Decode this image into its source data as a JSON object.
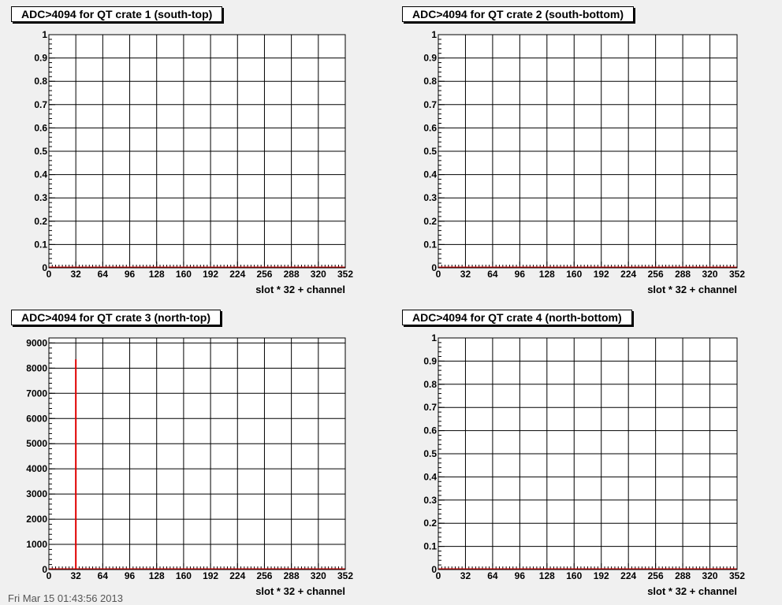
{
  "chart_data": [
    {
      "type": "bar",
      "title": "ADC>4094 for QT crate 1 (south-top)",
      "xlabel": "slot * 32 + channel",
      "ylabel": "",
      "xlim": [
        0,
        352
      ],
      "ylim": [
        0,
        1
      ],
      "xticks": [
        "0",
        "32",
        "64",
        "96",
        "128",
        "160",
        "192",
        "224",
        "256",
        "288",
        "320",
        "352"
      ],
      "yticks": [
        "0",
        "0.1",
        "0.2",
        "0.3",
        "0.4",
        "0.5",
        "0.6",
        "0.7",
        "0.8",
        "0.9",
        "1"
      ],
      "grid": true,
      "bars": []
    },
    {
      "type": "bar",
      "title": "ADC>4094 for QT crate 2 (south-bottom)",
      "xlabel": "slot * 32 + channel",
      "ylabel": "",
      "xlim": [
        0,
        352
      ],
      "ylim": [
        0,
        1
      ],
      "xticks": [
        "0",
        "32",
        "64",
        "96",
        "128",
        "160",
        "192",
        "224",
        "256",
        "288",
        "320",
        "352"
      ],
      "yticks": [
        "0",
        "0.1",
        "0.2",
        "0.3",
        "0.4",
        "0.5",
        "0.6",
        "0.7",
        "0.8",
        "0.9",
        "1"
      ],
      "grid": true,
      "bars": []
    },
    {
      "type": "bar",
      "title": "ADC>4094 for QT crate 3 (north-top)",
      "xlabel": "slot * 32 + channel",
      "ylabel": "",
      "xlim": [
        0,
        352
      ],
      "ylim": [
        0,
        9200
      ],
      "xticks": [
        "0",
        "32",
        "64",
        "96",
        "128",
        "160",
        "192",
        "224",
        "256",
        "288",
        "320",
        "352"
      ],
      "yticks": [
        "0",
        "1000",
        "2000",
        "3000",
        "4000",
        "5000",
        "6000",
        "7000",
        "8000",
        "9000"
      ],
      "grid": true,
      "bars": [
        {
          "x": 32,
          "value": 8350
        }
      ]
    },
    {
      "type": "bar",
      "title": "ADC>4094 for QT crate 4 (north-bottom)",
      "xlabel": "slot * 32 + channel",
      "ylabel": "",
      "xlim": [
        0,
        352
      ],
      "ylim": [
        0,
        1
      ],
      "xticks": [
        "0",
        "32",
        "64",
        "96",
        "128",
        "160",
        "192",
        "224",
        "256",
        "288",
        "320",
        "352"
      ],
      "yticks": [
        "0",
        "0.1",
        "0.2",
        "0.3",
        "0.4",
        "0.5",
        "0.6",
        "0.7",
        "0.8",
        "0.9",
        "1"
      ],
      "grid": true,
      "bars": []
    }
  ],
  "colors": {
    "histogram": "#e00000",
    "frame": "#000000",
    "background": "#f0f0f0"
  },
  "footer_text": "Fri Mar 15 01:43:56 2013"
}
